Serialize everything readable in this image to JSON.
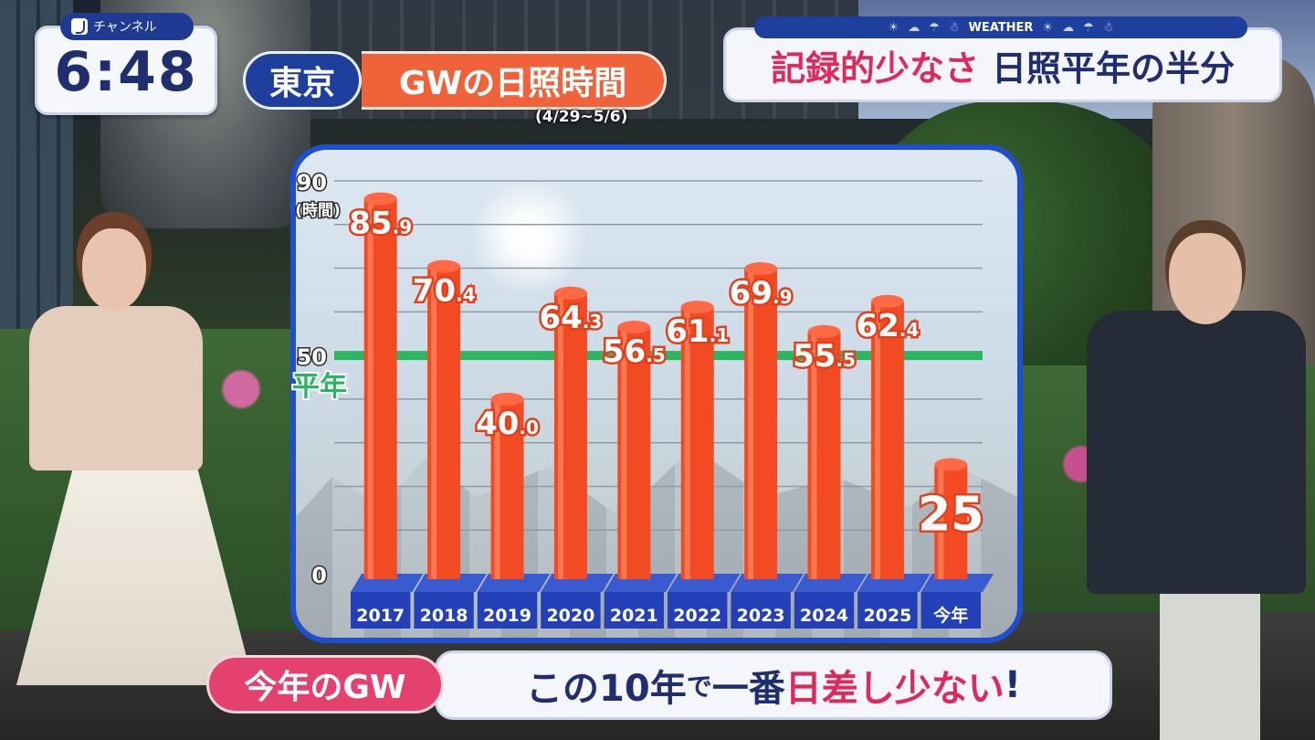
{
  "clock": {
    "channel": "チャンネル",
    "time": "6:48"
  },
  "title": {
    "region": "東京",
    "subject": "GWの日照時間",
    "period": "(4/29~5/6)"
  },
  "weather": {
    "strip_label": "WEATHER",
    "headline_red": "記録的少なさ",
    "headline_navy": "日照平年の半分"
  },
  "caption": {
    "tag": "今年のGW",
    "part1": "この10年",
    "part2": "で",
    "part3": "一番",
    "part4_red": "日差し少ない",
    "part5": "!"
  },
  "chart_data": {
    "type": "bar",
    "categories": [
      "2017",
      "2018",
      "2019",
      "2020",
      "2021",
      "2022",
      "2023",
      "2024",
      "2025",
      "今年"
    ],
    "values": [
      85.9,
      70.4,
      40.0,
      64.3,
      56.5,
      61.1,
      69.9,
      55.5,
      62.4,
      25
    ],
    "value_labels": [
      {
        "int": "85",
        "dec": ".9"
      },
      {
        "int": "70",
        "dec": ".4"
      },
      {
        "int": "40",
        "dec": ".0"
      },
      {
        "int": "64",
        "dec": ".3"
      },
      {
        "int": "56",
        "dec": ".5"
      },
      {
        "int": "61",
        "dec": ".1"
      },
      {
        "int": "69",
        "dec": ".9"
      },
      {
        "int": "55",
        "dec": ".5"
      },
      {
        "int": "62",
        "dec": ".4"
      },
      {
        "int": "25",
        "dec": ""
      }
    ],
    "ylabel": "(時間)",
    "ylim": [
      0,
      90
    ],
    "yticks": [
      "0",
      "50",
      "90"
    ],
    "reference_line": {
      "value": 50,
      "label": "平年"
    },
    "colors": {
      "bar": "#f24a22",
      "reference": "#2db462",
      "base": "#2340b8"
    }
  }
}
